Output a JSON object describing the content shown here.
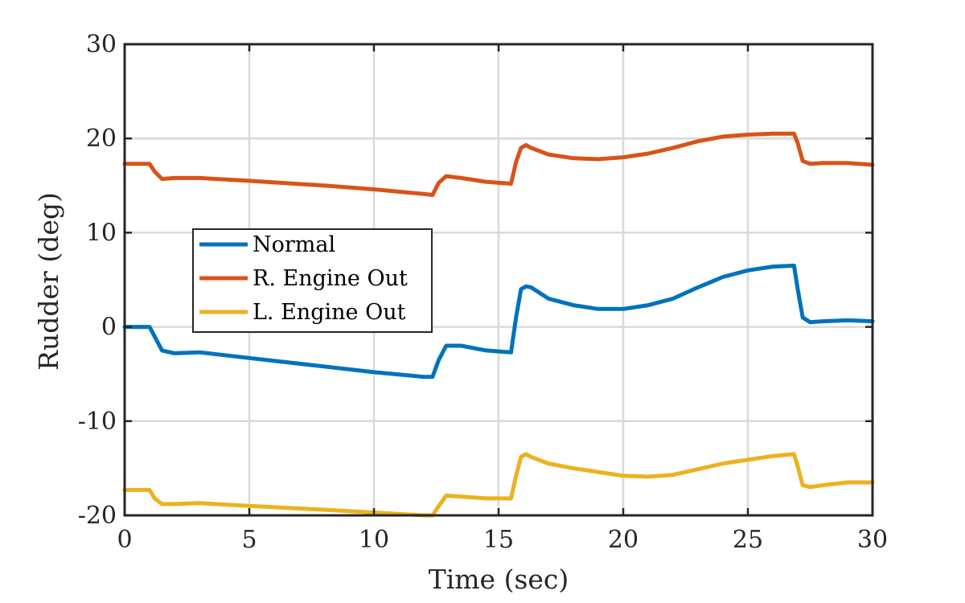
{
  "chart_data": {
    "type": "line",
    "title": "",
    "xlabel": "Time (sec)",
    "ylabel": "Rudder (deg)",
    "xlim": [
      0,
      30
    ],
    "ylim": [
      -20,
      30
    ],
    "xticks": [
      "0",
      "5",
      "10",
      "15",
      "20",
      "25",
      "30"
    ],
    "yticks": [
      "-20",
      "-10",
      "0",
      "10",
      "20",
      "30"
    ],
    "grid": true,
    "legend_position": "center-left",
    "series": [
      {
        "name": "Normal",
        "color": "#0072bd",
        "x": [
          0,
          1.0,
          1.2,
          1.5,
          2.0,
          3.0,
          5.0,
          8.0,
          10.0,
          12.0,
          12.35,
          12.6,
          12.9,
          13.5,
          14.5,
          15.5,
          15.7,
          15.9,
          16.1,
          16.3,
          17.0,
          18.0,
          19.0,
          20.0,
          21.0,
          22.0,
          23.0,
          24.0,
          25.0,
          26.0,
          26.85,
          27.0,
          27.2,
          27.5,
          28.0,
          29.0,
          30.0
        ],
        "y": [
          0,
          0,
          -1.0,
          -2.5,
          -2.8,
          -2.7,
          -3.3,
          -4.2,
          -4.8,
          -5.3,
          -5.3,
          -3.5,
          -2.0,
          -2.0,
          -2.5,
          -2.7,
          1.0,
          4.0,
          4.3,
          4.2,
          3.0,
          2.3,
          1.9,
          1.9,
          2.3,
          3.0,
          4.2,
          5.3,
          6.0,
          6.4,
          6.5,
          4.0,
          1.0,
          0.5,
          0.6,
          0.7,
          0.6
        ]
      },
      {
        "name": "R. Engine Out",
        "color": "#d95319",
        "x": [
          0,
          1.0,
          1.2,
          1.5,
          2.0,
          3.0,
          5.0,
          8.0,
          10.0,
          12.0,
          12.35,
          12.6,
          12.9,
          13.5,
          14.5,
          15.5,
          15.7,
          15.9,
          16.1,
          16.3,
          17.0,
          18.0,
          19.0,
          20.0,
          21.0,
          22.0,
          23.0,
          24.0,
          25.0,
          26.0,
          26.85,
          27.0,
          27.2,
          27.5,
          28.0,
          29.0,
          30.0
        ],
        "y": [
          17.3,
          17.3,
          16.5,
          15.7,
          15.8,
          15.8,
          15.5,
          15.0,
          14.6,
          14.1,
          14.0,
          15.3,
          16.0,
          15.8,
          15.4,
          15.2,
          17.5,
          19.0,
          19.3,
          19.0,
          18.3,
          17.9,
          17.8,
          18.0,
          18.4,
          19.0,
          19.7,
          20.2,
          20.4,
          20.5,
          20.5,
          19.5,
          17.6,
          17.3,
          17.4,
          17.4,
          17.2
        ]
      },
      {
        "name": "L. Engine Out",
        "color": "#edb120",
        "x": [
          0,
          1.0,
          1.2,
          1.5,
          2.0,
          3.0,
          5.0,
          8.0,
          10.0,
          12.0,
          12.35,
          12.6,
          12.9,
          13.5,
          14.5,
          15.5,
          15.7,
          15.9,
          16.1,
          16.3,
          17.0,
          18.0,
          19.0,
          20.0,
          21.0,
          22.0,
          23.0,
          24.0,
          25.0,
          26.0,
          26.85,
          27.0,
          27.2,
          27.5,
          28.0,
          29.0,
          30.0
        ],
        "y": [
          -17.3,
          -17.3,
          -18.2,
          -18.8,
          -18.8,
          -18.7,
          -19.0,
          -19.4,
          -19.7,
          -20.0,
          -20.0,
          -19.0,
          -17.9,
          -18.0,
          -18.2,
          -18.2,
          -15.8,
          -13.8,
          -13.5,
          -13.8,
          -14.5,
          -15.0,
          -15.4,
          -15.8,
          -15.9,
          -15.7,
          -15.1,
          -14.5,
          -14.1,
          -13.7,
          -13.5,
          -14.8,
          -16.8,
          -17.0,
          -16.8,
          -16.5,
          -16.5
        ]
      }
    ]
  }
}
